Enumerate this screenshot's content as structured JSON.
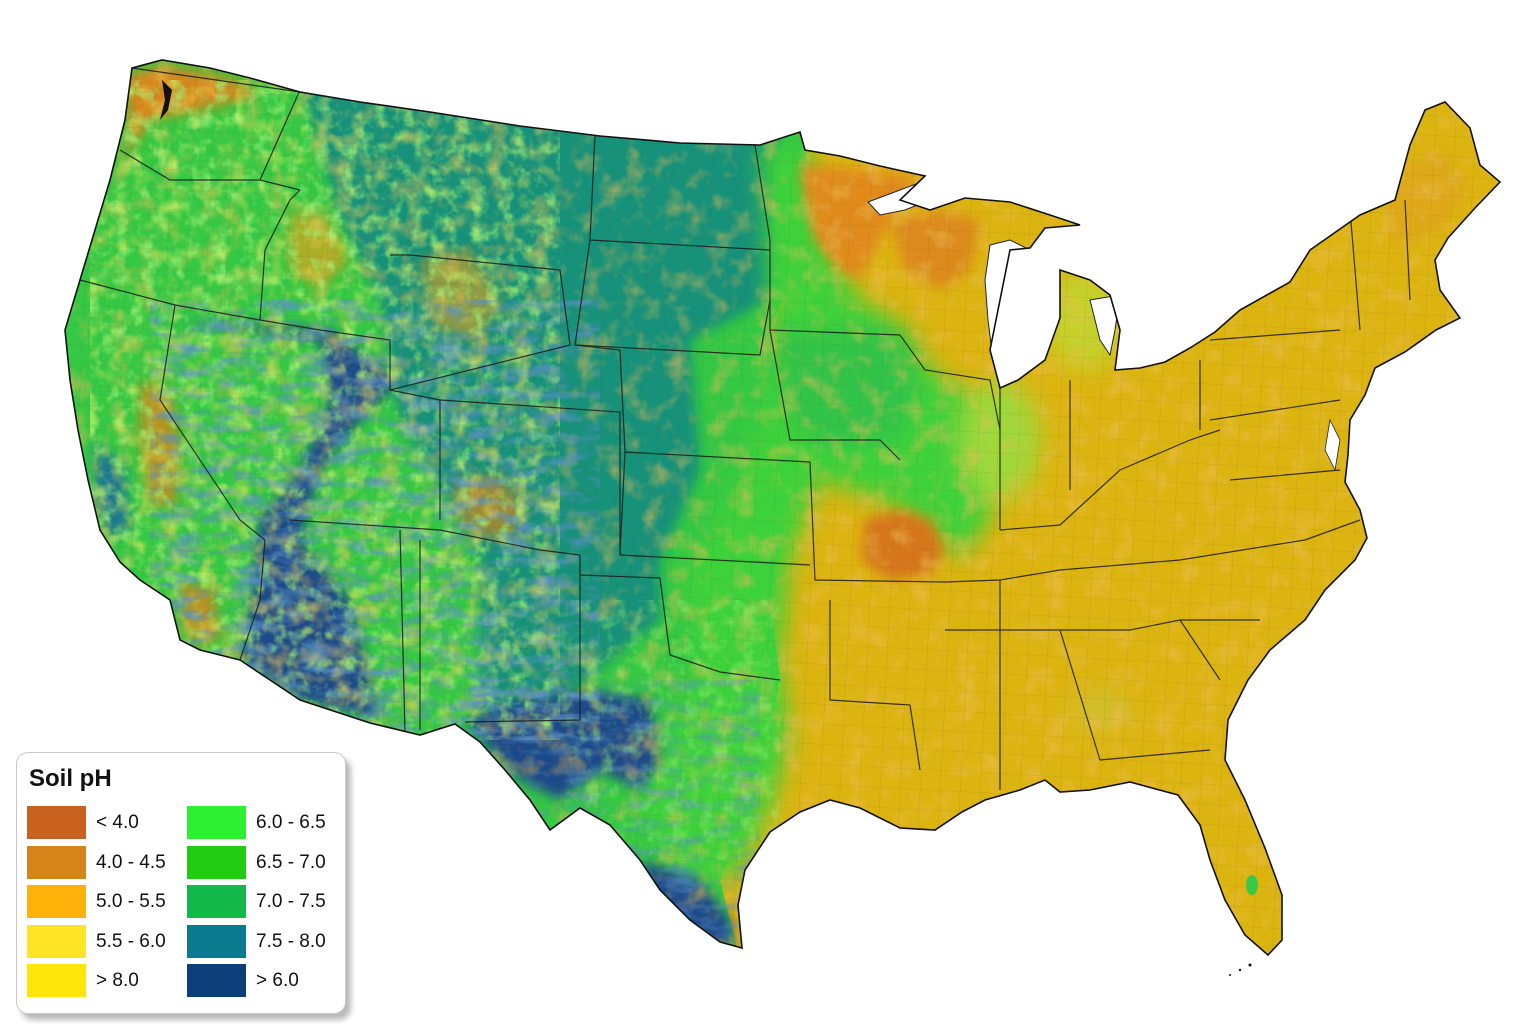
{
  "legend": {
    "title": "Soil pH",
    "items": [
      {
        "label": "< 4.0",
        "color": "#c8621e"
      },
      {
        "label": "6.0 - 6.5",
        "color": "#2ef032"
      },
      {
        "label": "4.0 - 4.5",
        "color": "#d6841a"
      },
      {
        "label": "6.5 - 7.0",
        "color": "#22cc12"
      },
      {
        "label": "5.0 - 5.5",
        "color": "#ffb20a"
      },
      {
        "label": "7.0 - 7.5",
        "color": "#12b84a"
      },
      {
        "label": "5.5 - 6.0",
        "color": "#ffe526"
      },
      {
        "label": "7.5 - 8.0",
        "color": "#0a7b8e"
      },
      {
        "label": "> 8.0",
        "color": "#ffe60a"
      },
      {
        "label": "> 6.0",
        "color": "#0d3e7a"
      }
    ]
  },
  "map": {
    "colors": {
      "east_base": "#dcb410",
      "gulf": "#d8b820",
      "plains_teal": "#14917a",
      "midwest_green": "#30c34a",
      "transition_green": "#3ed23a",
      "west_green": "#34c844",
      "desert_blue": "#1c4a8a",
      "acidic_orange": "#d6861c",
      "water": "#ffffff"
    }
  }
}
